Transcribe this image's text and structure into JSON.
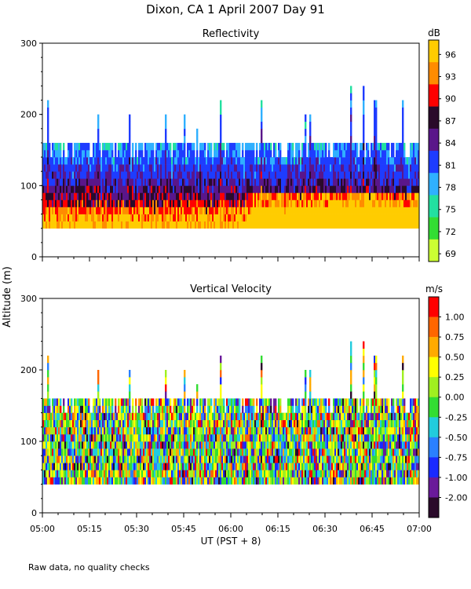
{
  "figure": {
    "title": "Dixon, CA   1 April 2007   Day   91",
    "shared_ylabel": "Altitude (m)",
    "footnote": "Raw data, no quality checks"
  },
  "chart_data": [
    {
      "type": "heatmap",
      "id": "reflectivity",
      "title": "Reflectivity",
      "xlabel": "",
      "ylabel": "Altitude (m)",
      "ylim": [
        0,
        300
      ],
      "yticks": [
        0,
        100,
        200,
        300
      ],
      "xlim_minutes": [
        0,
        120
      ],
      "xtick_labels": [],
      "echo_base_altitude_m": 40,
      "typical_echo_top_m": 160,
      "max_echo_top_m": 240,
      "colorbar": {
        "unit": "dB",
        "tick_labels": [
          "96",
          "93",
          "90",
          "87",
          "84",
          "81",
          "78",
          "75",
          "72",
          "69"
        ],
        "colors": [
          "#ffcc00",
          "#ff8c00",
          "#ff0000",
          "#2a0a2a",
          "#5a168a",
          "#1e3cff",
          "#2fb0ff",
          "#22e0a0",
          "#33dd33",
          "#ccff33"
        ]
      }
    },
    {
      "type": "heatmap",
      "id": "velocity",
      "title": "Vertical Velocity",
      "xlabel": "UT   (PST + 8)",
      "ylabel": "Altitude (m)",
      "ylim": [
        0,
        300
      ],
      "yticks": [
        0,
        100,
        200,
        300
      ],
      "xlim_minutes": [
        0,
        120
      ],
      "xtick_labels": [
        "05:00",
        "05:15",
        "05:30",
        "05:45",
        "06:00",
        "06:15",
        "06:30",
        "06:45",
        "07:00"
      ],
      "echo_base_altitude_m": 40,
      "typical_echo_top_m": 160,
      "max_echo_top_m": 240,
      "colorbar": {
        "unit": "m/s",
        "tick_labels": [
          "1.00",
          "0.75",
          "0.50",
          "0.25",
          "0.00",
          "-0.25",
          "-0.50",
          "-0.75",
          "-1.00",
          "-2.00"
        ],
        "colors": [
          "#ff0000",
          "#ff6600",
          "#ffaa00",
          "#ffff00",
          "#a0f020",
          "#33dd33",
          "#22ccdd",
          "#2a80ff",
          "#1a2aff",
          "#6a1a9a",
          "#2a0a2a"
        ]
      }
    }
  ]
}
